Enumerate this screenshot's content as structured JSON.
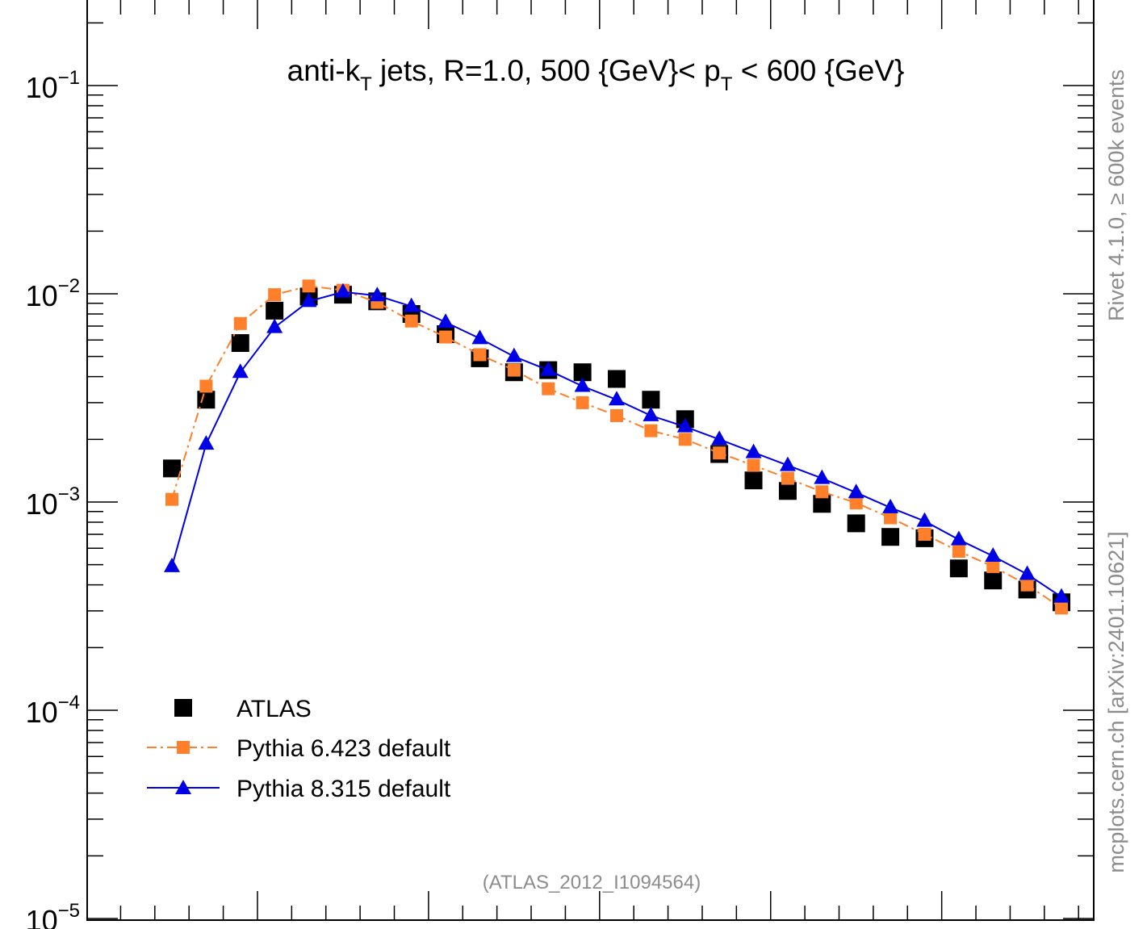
{
  "chart_data": {
    "type": "scatter",
    "title": "anti-k_T jets, R=1.0, 500 {GeV}< p_T < 600 {GeV}",
    "title_parts": [
      "anti-k",
      "T",
      " jets, R=1.0, 500 {GeV}< p",
      "T",
      " < 600 {GeV}"
    ],
    "xlabel": "",
    "ylabel": "",
    "y_scale": "log",
    "ylim": [
      1e-05,
      0.2
    ],
    "xlim": [
      0,
      300
    ],
    "y_ticks": [
      {
        "value": 0.1,
        "mantissa": "10",
        "exp": "−1"
      },
      {
        "value": 0.01,
        "mantissa": "10",
        "exp": "−2"
      },
      {
        "value": 0.001,
        "mantissa": "10",
        "exp": "−3"
      },
      {
        "value": 0.0001,
        "mantissa": "10",
        "exp": "−4"
      },
      {
        "value": 1e-05,
        "mantissa": "10",
        "exp": "−5"
      }
    ],
    "x": [
      25,
      35,
      45,
      55,
      65,
      75,
      85,
      95,
      105,
      115,
      125,
      135,
      145,
      155,
      165,
      175,
      185,
      195,
      205,
      215,
      225,
      235,
      245,
      255,
      265,
      275,
      285
    ],
    "series": [
      {
        "name": "ATLAS",
        "style": "square-marker",
        "color": "#000000",
        "values": [
          0.00145,
          0.0031,
          0.0058,
          0.0083,
          0.0097,
          0.0099,
          0.0092,
          0.008,
          0.0064,
          0.0049,
          0.0042,
          0.0043,
          0.0042,
          0.0039,
          0.0031,
          0.0025,
          0.0017,
          0.00127,
          0.00113,
          0.00098,
          0.00079,
          0.00068,
          0.00067,
          0.00048,
          0.00042,
          0.00038,
          0.00033
        ]
      },
      {
        "name": "Pythia 6.423 default",
        "style": "dash-dot-square",
        "color": "#ff7f2a",
        "values": [
          0.00103,
          0.0036,
          0.0072,
          0.0099,
          0.0109,
          0.0104,
          0.0091,
          0.0074,
          0.0062,
          0.0051,
          0.0043,
          0.0035,
          0.003,
          0.0026,
          0.0022,
          0.002,
          0.00172,
          0.0015,
          0.0013,
          0.00112,
          0.00099,
          0.00084,
          0.0007,
          0.00058,
          0.00049,
          0.0004,
          0.00031
        ]
      },
      {
        "name": "Pythia 8.315 default",
        "style": "solid-triangle",
        "color": "#0000e6",
        "values": [
          0.00049,
          0.0019,
          0.0042,
          0.0069,
          0.0092,
          0.0102,
          0.0098,
          0.0087,
          0.0073,
          0.0061,
          0.005,
          0.0043,
          0.0036,
          0.0031,
          0.0026,
          0.0023,
          0.002,
          0.00173,
          0.0015,
          0.0013,
          0.00111,
          0.00094,
          0.00081,
          0.00066,
          0.00055,
          0.00045,
          0.00035
        ]
      }
    ],
    "legend_position": "bottom-left",
    "annotation": "(ATLAS_2012_I1094564)",
    "side_label_top": "Rivet 4.1.0, ≥ 600k events",
    "side_label_bottom": "mcplots.cern.ch [arXiv:2401.10621]"
  }
}
